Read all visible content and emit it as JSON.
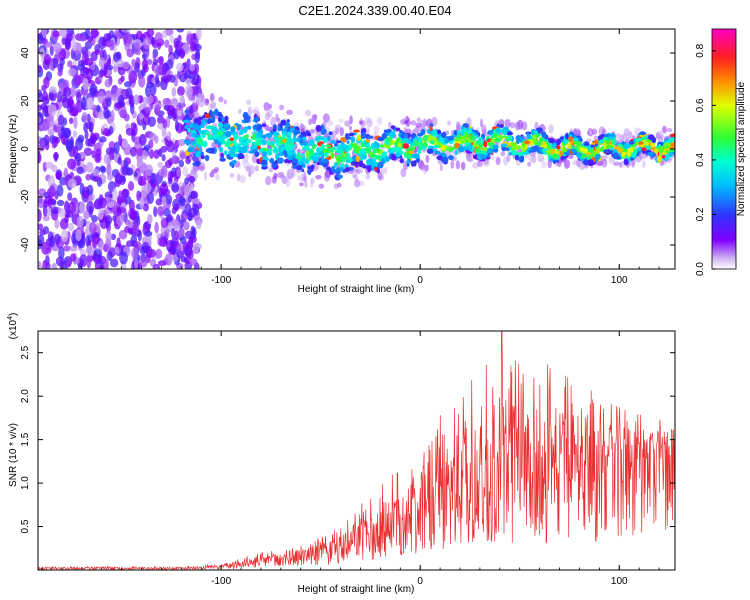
{
  "title": "C2E1.2024.339.00.40.E04",
  "chart_data": [
    {
      "type": "heatmap",
      "xlabel": "Height of straight line (km)",
      "ylabel": "Frequency (Hz)",
      "xlim": [
        -192,
        128
      ],
      "ylim": [
        -50,
        50
      ],
      "xticks": [
        -100,
        0,
        100
      ],
      "xtick_labels": [
        "-100",
        "0",
        "100"
      ],
      "yticks": [
        -40,
        -20,
        0,
        20,
        40
      ],
      "ytick_labels": [
        "-40",
        "-20",
        "0",
        "20",
        "40"
      ],
      "colorbar": {
        "label": "Normalized spectral amplitude",
        "range": [
          0,
          0.88
        ],
        "ticks": [
          0.0,
          0.2,
          0.4,
          0.6,
          0.8
        ],
        "tick_labels": [
          "0.0",
          "0.2",
          "0.4",
          "0.6",
          "0.8"
        ],
        "colormap": "rainbow (white-purple-blue-cyan-green-yellow-orange-red-magenta)"
      },
      "features": {
        "noise_region_x": [
          -192,
          -117
        ],
        "signal_band_start_x": -118,
        "signal_band_center_freq_x": [
          -118,
          -80,
          -40,
          0,
          40,
          80,
          128
        ],
        "signal_band_center_freq_y": [
          6,
          3,
          -2,
          2,
          3,
          0,
          1
        ],
        "signal_band_half_width": [
          10,
          9,
          8,
          6,
          5,
          4,
          4
        ]
      }
    },
    {
      "type": "line",
      "xlabel": "Height of straight line (km)",
      "ylabel": "SNR (10 * v/v)",
      "y_scale_label": "(x10",
      "y_scale_exp": "4",
      "xlim": [
        -192,
        128
      ],
      "ylim": [
        0,
        2.75
      ],
      "xticks": [
        -100,
        0,
        100
      ],
      "xtick_labels": [
        "-100",
        "0",
        "100"
      ],
      "yticks": [
        0.5,
        1.0,
        1.5,
        2.0,
        2.5
      ],
      "ytick_labels": [
        "0.5",
        "1.0",
        "1.5",
        "2.0",
        "2.5"
      ],
      "series": [
        {
          "name": "SNR",
          "color": "#e83030",
          "envelope_x": [
            -192,
            -120,
            -100,
            -80,
            -60,
            -40,
            -20,
            0,
            20,
            40,
            60,
            80,
            100,
            128
          ],
          "envelope_mean_y": [
            0.02,
            0.02,
            0.04,
            0.1,
            0.16,
            0.25,
            0.5,
            0.7,
            0.95,
            1.15,
            1.2,
            1.25,
            1.35,
            1.4
          ],
          "envelope_peak_y": [
            0.04,
            0.04,
            0.08,
            0.2,
            0.3,
            0.5,
            1.0,
            1.55,
            2.1,
            2.75,
            2.5,
            2.2,
            1.9,
            1.7
          ],
          "peak_value": 2.75,
          "peak_x": 41
        }
      ]
    }
  ]
}
